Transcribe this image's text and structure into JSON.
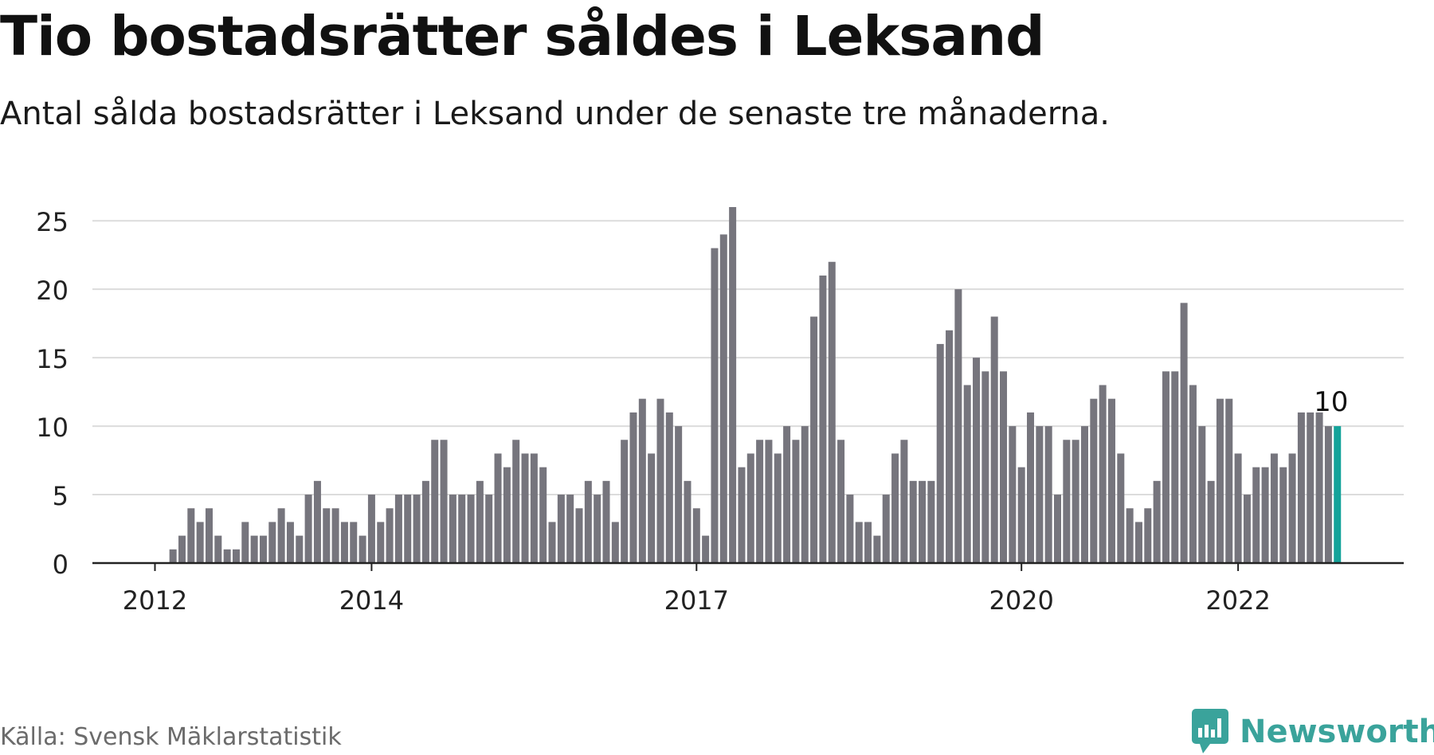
{
  "title": "Tio bostadsrätter såldes i Leksand",
  "subtitle": "Antal sålda bostadsrätter i Leksand under de senaste tre månaderna.",
  "source": "Källa: Svensk Mäklarstatistik",
  "brand": {
    "name": "Newsworthy",
    "icon": "newsworthy-logo-icon",
    "color": "#3aa39b"
  },
  "colors": {
    "bar": "#76757d",
    "highlight": "#14a39a",
    "grid": "#dcdcdc",
    "axis": "#222222",
    "text": "#222222"
  },
  "chart_data": {
    "type": "bar",
    "title": "Tio bostadsrätter såldes i Leksand",
    "subtitle": "Antal sålda bostadsrätter i Leksand under de senaste tre månaderna.",
    "xlabel": "",
    "ylabel": "",
    "ylim": [
      0,
      26
    ],
    "yticks": [
      0,
      5,
      10,
      15,
      20,
      25
    ],
    "grid": true,
    "x_tick_labels": [
      {
        "label": "2012",
        "index": 0
      },
      {
        "label": "2014",
        "index": 24
      },
      {
        "label": "2017",
        "index": 60
      },
      {
        "label": "2020",
        "index": 96
      },
      {
        "label": "2022",
        "index": 120
      }
    ],
    "values": [
      0,
      0,
      1,
      2,
      4,
      3,
      4,
      2,
      1,
      1,
      3,
      2,
      2,
      3,
      4,
      3,
      2,
      5,
      6,
      4,
      4,
      3,
      3,
      2,
      5,
      3,
      4,
      5,
      5,
      5,
      6,
      9,
      9,
      5,
      5,
      5,
      6,
      5,
      8,
      7,
      9,
      8,
      8,
      7,
      3,
      5,
      5,
      4,
      6,
      5,
      6,
      3,
      9,
      11,
      12,
      8,
      12,
      11,
      10,
      6,
      4,
      2,
      23,
      24,
      26,
      7,
      8,
      9,
      9,
      8,
      10,
      9,
      10,
      18,
      21,
      22,
      9,
      5,
      3,
      3,
      2,
      5,
      8,
      9,
      6,
      6,
      6,
      16,
      17,
      20,
      13,
      15,
      14,
      18,
      14,
      10,
      7,
      11,
      10,
      10,
      5,
      9,
      9,
      10,
      12,
      13,
      12,
      8,
      4,
      3,
      4,
      6,
      14,
      14,
      19,
      13,
      10,
      6,
      12,
      12,
      8,
      5,
      7,
      7,
      8,
      7,
      8,
      11,
      11,
      11,
      10,
      10
    ],
    "highlight_last": true,
    "annotations": [
      {
        "text": "10",
        "target": "last"
      }
    ]
  }
}
